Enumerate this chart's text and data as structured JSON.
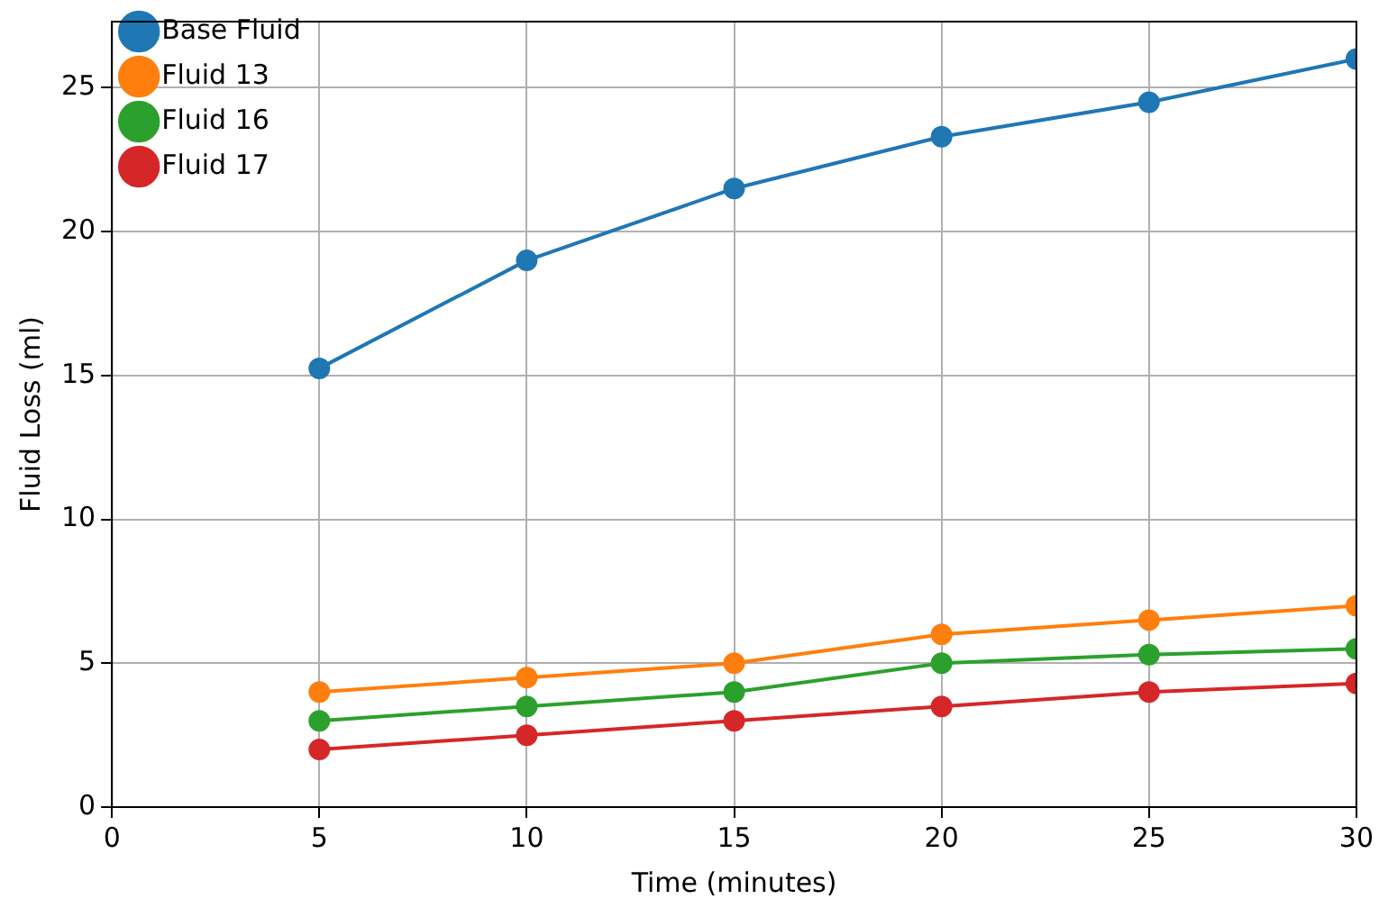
{
  "chart_data": {
    "type": "line",
    "xlabel": "Time (minutes)",
    "ylabel": "Fluid Loss (ml)",
    "x": [
      5,
      10,
      15,
      20,
      25,
      30
    ],
    "series": [
      {
        "name": "Base Fluid",
        "color": "#1f77b4",
        "values": [
          15.25,
          19,
          21.5,
          23.3,
          24.5,
          26
        ]
      },
      {
        "name": "Fluid 13",
        "color": "#ff7f0e",
        "values": [
          4,
          4.5,
          5,
          6,
          6.5,
          7
        ]
      },
      {
        "name": "Fluid 16",
        "color": "#2ca02c",
        "values": [
          3,
          3.5,
          4,
          5,
          5.3,
          5.5
        ]
      },
      {
        "name": "Fluid 17",
        "color": "#d62728",
        "values": [
          2,
          2.5,
          3,
          3.5,
          4,
          4.3
        ]
      }
    ],
    "xlim": [
      0,
      30
    ],
    "xticks": [
      0,
      5,
      10,
      15,
      20,
      25,
      30
    ],
    "ylim": [
      0,
      27.3
    ],
    "yticks": [
      0,
      5,
      10,
      15,
      20,
      25
    ],
    "grid": true,
    "legend": "top left",
    "marker": "circle",
    "line_style": "solid"
  }
}
